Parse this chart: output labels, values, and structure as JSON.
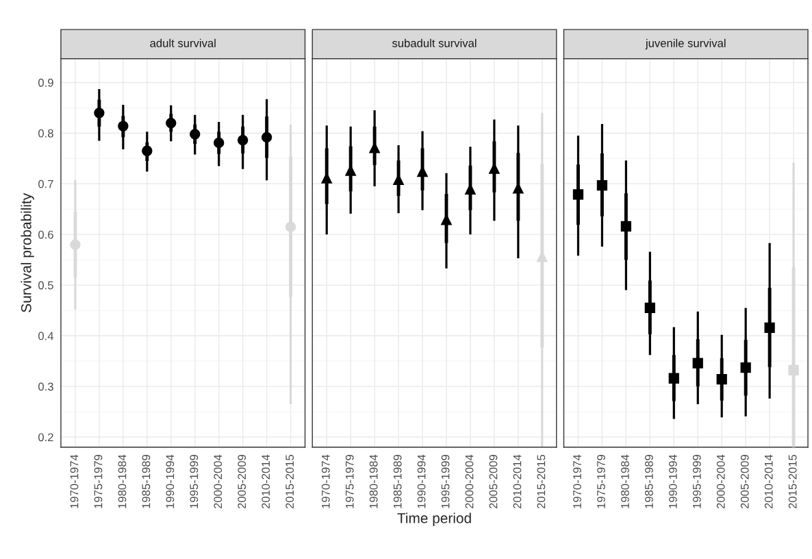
{
  "chart_data": [
    {
      "type": "scatter",
      "title": "adult survival",
      "ylabel": "Survival probability",
      "categories": [
        "1970-1974",
        "1975-1979",
        "1980-1984",
        "1985-1989",
        "1990-1994",
        "1995-1999",
        "2000-2004",
        "2005-2009",
        "2010-2014",
        "2015-2015"
      ],
      "ylim": [
        0.18,
        0.947
      ],
      "yticks": [
        0.2,
        0.3,
        0.4,
        0.5,
        0.6,
        0.7,
        0.8,
        0.9
      ],
      "grid": true,
      "series": [
        {
          "type": "bar",
          "colors": [
            "#d9d9d9",
            "#000000",
            "#000000",
            "#000000",
            "#000000",
            "#000000",
            "#000000",
            "#000000",
            "#000000",
            "#d9d9d9"
          ],
          "base": [
            0.515,
            0.813,
            0.792,
            0.745,
            0.803,
            0.779,
            0.759,
            0.76,
            0.751,
            0.477
          ],
          "values": [
            0.13,
            0.053,
            0.042,
            0.037,
            0.035,
            0.038,
            0.044,
            0.053,
            0.082,
            0.277
          ]
        },
        {
          "marker": "circle",
          "colors": [
            "#d9d9d9",
            "#000000",
            "#000000",
            "#000000",
            "#000000",
            "#000000",
            "#000000",
            "#000000",
            "#000000",
            "#d9d9d9"
          ],
          "values": [
            0.58,
            0.84,
            0.814,
            0.765,
            0.82,
            0.798,
            0.781,
            0.786,
            0.792,
            0.615
          ],
          "errors": [
            [
              0.452,
              0.708
            ],
            [
              0.785,
              0.887
            ],
            [
              0.768,
              0.856
            ],
            [
              0.724,
              0.803
            ],
            [
              0.784,
              0.855
            ],
            [
              0.758,
              0.836
            ],
            [
              0.735,
              0.822
            ],
            [
              0.729,
              0.836
            ],
            [
              0.707,
              0.867
            ],
            [
              0.265,
              0.817
            ]
          ]
        }
      ]
    },
    {
      "type": "scatter",
      "title": "subadult survival",
      "xlabel": "Time period",
      "tick_labels": "x",
      "categories": [
        "1970-1974",
        "1975-1979",
        "1980-1984",
        "1985-1989",
        "1990-1994",
        "1995-1999",
        "2000-2004",
        "2005-2009",
        "2010-2014",
        "2015-2015"
      ],
      "ylim": [
        0.18,
        0.947
      ],
      "yticks": [
        0.2,
        0.3,
        0.4,
        0.5,
        0.6,
        0.7,
        0.8,
        0.9
      ],
      "grid": true,
      "series": [
        {
          "type": "bar",
          "colors": [
            "#000000",
            "#000000",
            "#000000",
            "#000000",
            "#000000",
            "#000000",
            "#000000",
            "#000000",
            "#000000",
            "#d9d9d9"
          ],
          "base": [
            0.66,
            0.685,
            0.737,
            0.676,
            0.687,
            0.583,
            0.648,
            0.683,
            0.627,
            0.377
          ],
          "values": [
            0.11,
            0.089,
            0.076,
            0.07,
            0.083,
            0.097,
            0.088,
            0.101,
            0.134,
            0.363
          ]
        },
        {
          "marker": "triangle",
          "colors": [
            "#000000",
            "#000000",
            "#000000",
            "#000000",
            "#000000",
            "#000000",
            "#000000",
            "#000000",
            "#000000",
            "#d9d9d9"
          ],
          "values": [
            0.712,
            0.727,
            0.772,
            0.709,
            0.725,
            0.63,
            0.69,
            0.731,
            0.692,
            0.557
          ],
          "errors": [
            [
              0.6,
              0.815
            ],
            [
              0.641,
              0.813
            ],
            [
              0.695,
              0.845
            ],
            [
              0.642,
              0.776
            ],
            [
              0.648,
              0.804
            ],
            [
              0.533,
              0.721
            ],
            [
              0.6,
              0.773
            ],
            [
              0.627,
              0.827
            ],
            [
              0.553,
              0.815
            ],
            [
              0.18,
              0.84
            ]
          ]
        }
      ]
    },
    {
      "type": "scatter",
      "title": "juvenile survival",
      "tick_labels": "x",
      "categories": [
        "1970-1974",
        "1975-1979",
        "1980-1984",
        "1985-1989",
        "1990-1994",
        "1995-1999",
        "2000-2004",
        "2005-2009",
        "2010-2014",
        "2015-2015"
      ],
      "ylim": [
        0.18,
        0.947
      ],
      "yticks": [
        0.2,
        0.3,
        0.4,
        0.5,
        0.6,
        0.7,
        0.8,
        0.9
      ],
      "grid": true,
      "series": [
        {
          "type": "bar",
          "colors": [
            "#000000",
            "#000000",
            "#000000",
            "#000000",
            "#000000",
            "#000000",
            "#000000",
            "#000000",
            "#000000",
            "#d9d9d9"
          ],
          "base": [
            0.619,
            0.636,
            0.55,
            0.403,
            0.271,
            0.3,
            0.272,
            0.282,
            0.338,
            0.18
          ],
          "values": [
            0.119,
            0.124,
            0.131,
            0.106,
            0.091,
            0.093,
            0.084,
            0.11,
            0.157,
            0.355
          ]
        },
        {
          "marker": "square",
          "colors": [
            "#000000",
            "#000000",
            "#000000",
            "#000000",
            "#000000",
            "#000000",
            "#000000",
            "#000000",
            "#000000",
            "#d9d9d9"
          ],
          "values": [
            0.679,
            0.697,
            0.616,
            0.455,
            0.316,
            0.346,
            0.314,
            0.337,
            0.416,
            0.332
          ],
          "errors": [
            [
              0.558,
              0.795
            ],
            [
              0.576,
              0.818
            ],
            [
              0.49,
              0.746
            ],
            [
              0.362,
              0.566
            ],
            [
              0.236,
              0.417
            ],
            [
              0.265,
              0.448
            ],
            [
              0.239,
              0.402
            ],
            [
              0.241,
              0.455
            ],
            [
              0.276,
              0.583
            ],
            [
              0.18,
              0.742
            ]
          ]
        }
      ]
    }
  ]
}
